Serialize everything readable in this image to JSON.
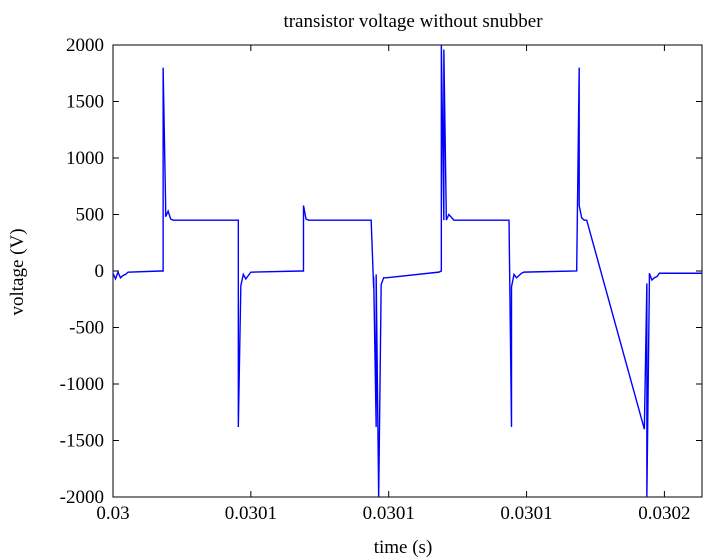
{
  "chart_data": {
    "type": "line",
    "title": "transistor voltage without snubber",
    "xlabel": "time (s)",
    "ylabel": "voltage (V)",
    "xlim": [
      0.03,
      0.030235
    ],
    "ylim": [
      -2000,
      2000
    ],
    "grid": false,
    "xticks": [
      {
        "value": 0.03,
        "label": "0.03"
      },
      {
        "value": 0.030055,
        "label": "0.0301"
      },
      {
        "value": 0.03011,
        "label": "0.0301"
      },
      {
        "value": 0.030165,
        "label": "0.0301"
      },
      {
        "value": 0.03022,
        "label": "0.0302"
      }
    ],
    "yticks": [
      {
        "value": 2000,
        "label": "2000"
      },
      {
        "value": 1500,
        "label": "1500"
      },
      {
        "value": 1000,
        "label": "1000"
      },
      {
        "value": 500,
        "label": "500"
      },
      {
        "value": 0,
        "label": "0"
      },
      {
        "value": -500,
        "label": "-500"
      },
      {
        "value": -1000,
        "label": "-1000"
      },
      {
        "value": -1500,
        "label": "-1500"
      },
      {
        "value": -2000,
        "label": "-2000"
      }
    ],
    "series": [
      {
        "color": "#0000ff",
        "x": [
          0.03,
          0.030001,
          0.030002,
          0.030003,
          0.030004,
          0.030005,
          0.030006,
          0.030019,
          0.03002,
          0.03002,
          0.030021,
          0.030021,
          0.030022,
          0.030023,
          0.030024,
          0.030049,
          0.03005,
          0.03005,
          0.030051,
          0.030052,
          0.030053,
          0.030054,
          0.030055,
          0.030075,
          0.030076,
          0.030076,
          0.030077,
          0.030078,
          0.03008,
          0.030103,
          0.030104,
          0.030104,
          0.030105,
          0.030105,
          0.030106,
          0.030107,
          0.030108,
          0.030109,
          0.03013,
          0.030131,
          0.030131,
          0.030132,
          0.030132,
          0.030133,
          0.030134,
          0.030136,
          0.030158,
          0.030159,
          0.030159,
          0.03016,
          0.030161,
          0.030162,
          0.030163,
          0.030164,
          0.030185,
          0.030186,
          0.030186,
          0.030187,
          0.030188,
          0.030189,
          0.030212,
          0.030213,
          0.030213,
          0.030214,
          0.030214,
          0.030215,
          0.030216,
          0.030217,
          0.030218,
          0.030235
        ],
        "y": [
          -20,
          -70,
          -10,
          -60,
          -40,
          -30,
          -10,
          0,
          0,
          1800,
          580,
          480,
          530,
          460,
          450,
          450,
          450,
          -1380,
          -130,
          -30,
          -70,
          -40,
          -10,
          0,
          0,
          580,
          460,
          450,
          450,
          450,
          -150,
          -50,
          -1380,
          -30,
          -2000,
          -120,
          -60,
          -60,
          -10,
          0,
          2000,
          450,
          1960,
          450,
          500,
          450,
          450,
          -1380,
          -140,
          -30,
          -60,
          -40,
          -20,
          -10,
          0,
          1800,
          580,
          470,
          450,
          450,
          -1400,
          -110,
          -2000,
          -120,
          -20,
          -80,
          -60,
          -50,
          -20,
          -20
        ]
      }
    ]
  }
}
